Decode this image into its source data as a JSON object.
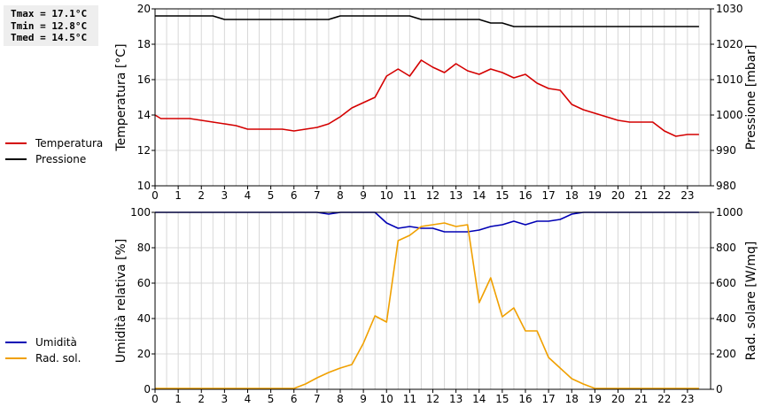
{
  "stats": {
    "tmax": "Tmax = 17.1°C",
    "tmin": "Tmin = 12.8°C",
    "tmed": "Tmed = 14.5°C"
  },
  "legend_top": [
    {
      "label": "Temperatura",
      "color": "#d40000"
    },
    {
      "label": "Pressione",
      "color": "#000000"
    }
  ],
  "legend_bottom": [
    {
      "label": "Umidità",
      "color": "#0000b4"
    },
    {
      "label": "Rad. sol.",
      "color": "#f0a000"
    }
  ],
  "chart_data": [
    {
      "type": "line",
      "xlabel": "",
      "xlim": [
        0,
        24
      ],
      "xticks": [
        0,
        1,
        2,
        3,
        4,
        5,
        6,
        7,
        8,
        9,
        10,
        11,
        12,
        13,
        14,
        15,
        16,
        17,
        18,
        19,
        20,
        21,
        22,
        23
      ],
      "ylabel_left": "Temperatura [°C]",
      "ylim_left": [
        10,
        20
      ],
      "yticks_left": [
        10,
        12,
        14,
        16,
        18,
        20
      ],
      "ylabel_right": "Pressione [mbar]",
      "ylim_right": [
        980,
        1030
      ],
      "yticks_right": [
        980,
        990,
        1000,
        1010,
        1020,
        1030
      ],
      "grid": true,
      "legend": "left",
      "series": [
        {
          "name": "Temperatura",
          "axis": "left",
          "color": "#d40000",
          "x": [
            0,
            0.25,
            0.5,
            1,
            1.5,
            2,
            2.5,
            3,
            3.5,
            4,
            4.5,
            5,
            5.5,
            6,
            6.5,
            7,
            7.5,
            8,
            8.5,
            9,
            9.5,
            10,
            10.5,
            11,
            11.5,
            12,
            12.5,
            13,
            13.5,
            14,
            14.5,
            15,
            15.5,
            16,
            16.5,
            17,
            17.5,
            18,
            18.5,
            19,
            19.5,
            20,
            20.5,
            21,
            21.5,
            22,
            22.5,
            23,
            23.5
          ],
          "values": [
            14.0,
            13.8,
            13.8,
            13.8,
            13.8,
            13.7,
            13.6,
            13.5,
            13.4,
            13.2,
            13.2,
            13.2,
            13.2,
            13.1,
            13.2,
            13.3,
            13.5,
            13.9,
            14.4,
            14.7,
            15.0,
            16.2,
            16.6,
            16.2,
            17.1,
            16.7,
            16.4,
            16.9,
            16.5,
            16.3,
            16.6,
            16.4,
            16.1,
            16.3,
            15.8,
            15.5,
            15.4,
            14.6,
            14.3,
            14.1,
            13.9,
            13.7,
            13.6,
            13.6,
            13.6,
            13.1,
            12.8,
            12.9,
            12.9
          ]
        },
        {
          "name": "Pressione",
          "axis": "right",
          "color": "#000000",
          "x": [
            0,
            0.5,
            1,
            1.5,
            2,
            2.5,
            3,
            3.5,
            4,
            4.5,
            5,
            5.5,
            6,
            6.5,
            7,
            7.5,
            8,
            8.5,
            9,
            9.5,
            10,
            10.5,
            11,
            11.5,
            12,
            12.5,
            13,
            13.5,
            14,
            14.5,
            15,
            15.5,
            16,
            16.5,
            17,
            17.5,
            18,
            18.5,
            19,
            19.5,
            20,
            20.5,
            21,
            21.5,
            22,
            22.5,
            23,
            23.5
          ],
          "values": [
            1028,
            1028,
            1028,
            1028,
            1028,
            1028,
            1027,
            1027,
            1027,
            1027,
            1027,
            1027,
            1027,
            1027,
            1027,
            1027,
            1028,
            1028,
            1028,
            1028,
            1028,
            1028,
            1028,
            1027,
            1027,
            1027,
            1027,
            1027,
            1027,
            1026,
            1026,
            1025,
            1025,
            1025,
            1025,
            1025,
            1025,
            1025,
            1025,
            1025,
            1025,
            1025,
            1025,
            1025,
            1025,
            1025,
            1025,
            1025
          ]
        }
      ]
    },
    {
      "type": "line",
      "xlabel": "",
      "xlim": [
        0,
        24
      ],
      "xticks": [
        0,
        1,
        2,
        3,
        4,
        5,
        6,
        7,
        8,
        9,
        10,
        11,
        12,
        13,
        14,
        15,
        16,
        17,
        18,
        19,
        20,
        21,
        22,
        23
      ],
      "ylabel_left": "Umidità relativa [%]",
      "ylim_left": [
        0,
        100
      ],
      "yticks_left": [
        0,
        20,
        40,
        60,
        80,
        100
      ],
      "ylabel_right": "Rad. solare [W/mq]",
      "ylim_right": [
        0,
        1000
      ],
      "yticks_right": [
        0,
        200,
        400,
        600,
        800,
        1000
      ],
      "grid": true,
      "legend": "left",
      "series": [
        {
          "name": "Umidità",
          "axis": "left",
          "color": "#0000b4",
          "x": [
            0,
            0.5,
            1,
            1.5,
            2,
            2.5,
            3,
            3.5,
            4,
            4.5,
            5,
            5.5,
            6,
            6.5,
            7,
            7.5,
            8,
            8.5,
            9,
            9.5,
            10,
            10.5,
            11,
            11.5,
            12,
            12.5,
            13,
            13.5,
            14,
            14.5,
            15,
            15.5,
            16,
            16.5,
            17,
            17.5,
            18,
            18.5,
            19,
            19.5,
            20,
            20.5,
            21,
            21.5,
            22,
            22.5,
            23,
            23.5
          ],
          "values": [
            100,
            100,
            100,
            100,
            100,
            100,
            100,
            100,
            100,
            100,
            100,
            100,
            100,
            100,
            100,
            99,
            100,
            100,
            100,
            100,
            94,
            91,
            92,
            91,
            91,
            89,
            89,
            89,
            90,
            92,
            93,
            95,
            93,
            95,
            95,
            96,
            99,
            100,
            100,
            100,
            100,
            100,
            100,
            100,
            100,
            100,
            100,
            100
          ]
        },
        {
          "name": "Rad. sol.",
          "axis": "right",
          "color": "#f0a000",
          "x": [
            0,
            0.5,
            1,
            1.5,
            2,
            2.5,
            3,
            3.5,
            4,
            4.5,
            5,
            5.5,
            6,
            6.5,
            7,
            7.5,
            8,
            8.5,
            9,
            9.5,
            10,
            10.5,
            11,
            11.5,
            12,
            12.5,
            13,
            13.5,
            14,
            14.5,
            15,
            15.5,
            16,
            16.5,
            17,
            17.5,
            18,
            18.5,
            19,
            19.5,
            20,
            20.5,
            21,
            21.5,
            22,
            22.5,
            23,
            23.5
          ],
          "values": [
            5,
            5,
            5,
            5,
            5,
            5,
            5,
            5,
            5,
            5,
            5,
            5,
            5,
            30,
            65,
            95,
            120,
            140,
            260,
            415,
            380,
            840,
            870,
            920,
            930,
            940,
            920,
            930,
            490,
            630,
            410,
            460,
            330,
            330,
            180,
            120,
            60,
            30,
            5,
            5,
            5,
            5,
            5,
            5,
            5,
            5,
            5,
            5
          ]
        }
      ]
    }
  ]
}
